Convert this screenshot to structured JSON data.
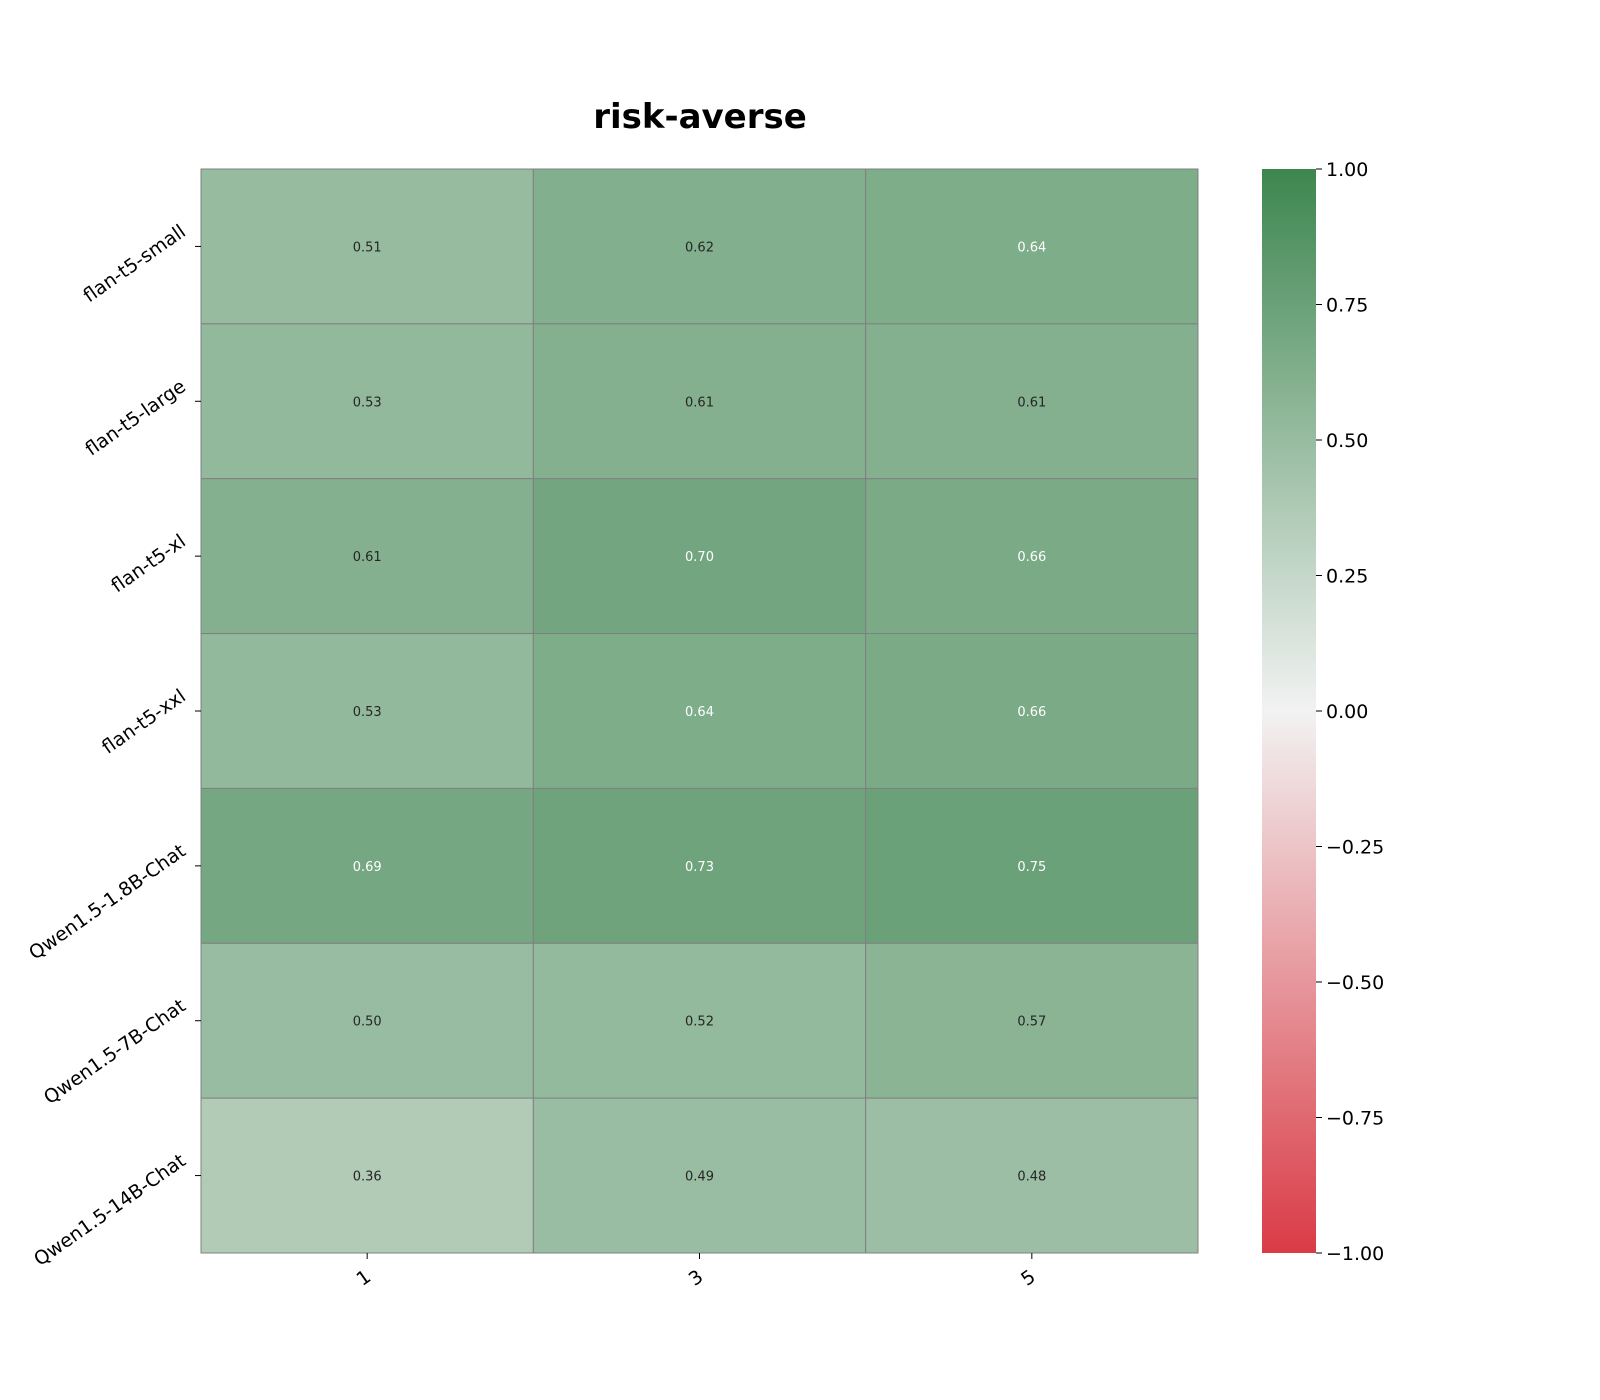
{
  "chart_data": {
    "type": "heatmap",
    "title": "risk-averse",
    "xlabel": "",
    "ylabel": "",
    "x_categories": [
      "1",
      "3",
      "5"
    ],
    "y_categories": [
      "flan-t5-small",
      "flan-t5-large",
      "flan-t5-xl",
      "flan-t5-xxl",
      "Qwen1.5-1.8B-Chat",
      "Qwen1.5-7B-Chat",
      "Qwen1.5-14B-Chat"
    ],
    "values": [
      [
        0.51,
        0.62,
        0.64
      ],
      [
        0.53,
        0.61,
        0.61
      ],
      [
        0.61,
        0.7,
        0.66
      ],
      [
        0.53,
        0.64,
        0.66
      ],
      [
        0.69,
        0.73,
        0.75
      ],
      [
        0.5,
        0.52,
        0.57
      ],
      [
        0.36,
        0.49,
        0.48
      ]
    ],
    "value_labels": [
      [
        "0.51",
        "0.62",
        "0.64"
      ],
      [
        "0.53",
        "0.61",
        "0.61"
      ],
      [
        "0.61",
        "0.70",
        "0.66"
      ],
      [
        "0.53",
        "0.64",
        "0.66"
      ],
      [
        "0.69",
        "0.73",
        "0.75"
      ],
      [
        "0.50",
        "0.52",
        "0.57"
      ],
      [
        "0.36",
        "0.49",
        "0.48"
      ]
    ],
    "colorbar": {
      "range": [
        -1.0,
        1.0
      ],
      "ticks": [
        1.0,
        0.75,
        0.5,
        0.25,
        0.0,
        -0.25,
        -0.5,
        -0.75,
        -1.0
      ],
      "tick_labels": [
        "1.00",
        "0.75",
        "0.50",
        "0.25",
        "0.00",
        "−0.25",
        "−0.50",
        "−0.75",
        "−1.00"
      ],
      "colors": {
        "low": "#da3b46",
        "mid": "#f2f2f2",
        "high": "#3d864f"
      }
    },
    "grid": true,
    "legend": "colorbar-right"
  }
}
